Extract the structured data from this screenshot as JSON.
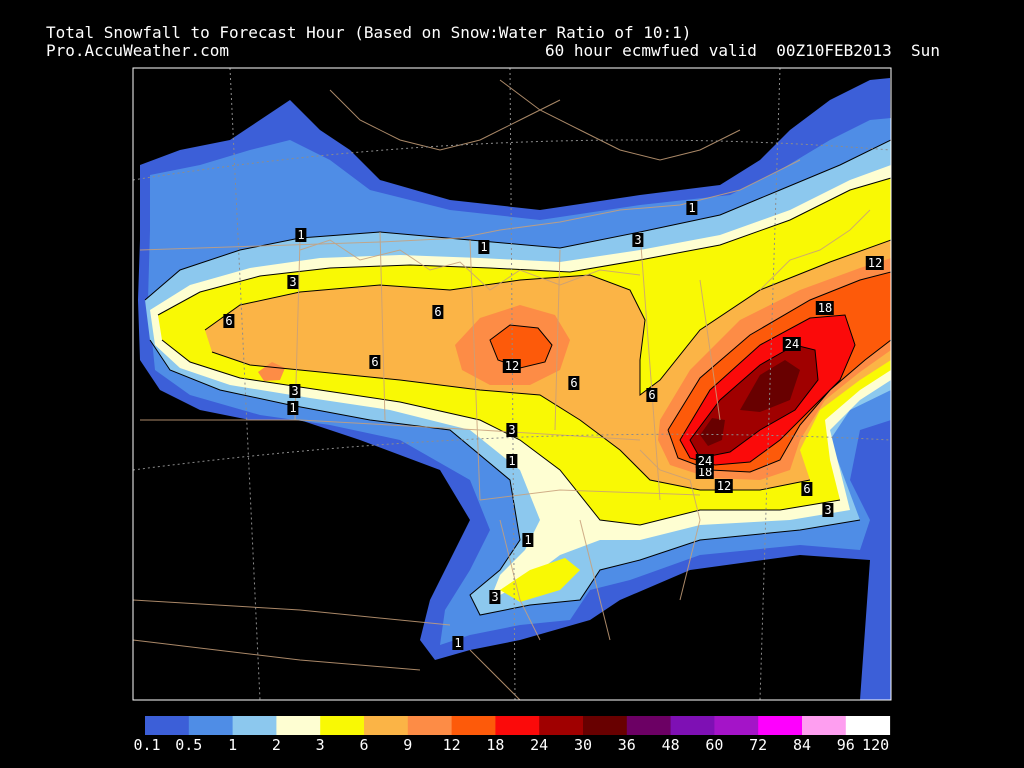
{
  "header": {
    "title": "Total Snowfall to Forecast Hour (Based on Snow:Water Ratio of 10:1)",
    "source": "Pro.AccuWeather.com",
    "valid": "60 hour ecmwfued valid  00Z10FEB2013  Sun"
  },
  "contour_labels": [
    "1",
    "1",
    "1",
    "1",
    "1",
    "1",
    "1",
    "3",
    "3",
    "3",
    "3",
    "3",
    "6",
    "6",
    "6",
    "6",
    "6",
    "6",
    "12",
    "12",
    "12",
    "18",
    "18",
    "24",
    "24",
    "3"
  ],
  "legend": {
    "ticks": [
      "0.1",
      "0.5",
      "1",
      "2",
      "3",
      "6",
      "9",
      "12",
      "18",
      "24",
      "30",
      "36",
      "48",
      "60",
      "72",
      "84",
      "96",
      "120"
    ],
    "colors": [
      "#3c5fd8",
      "#4f8de6",
      "#8cc8ee",
      "#fefed2",
      "#f9f904",
      "#fbb446",
      "#fd8c46",
      "#fd5a0a",
      "#fb0a0a",
      "#a00000",
      "#680000",
      "#6c0064",
      "#7e10b4",
      "#a414c8",
      "#fe00fe",
      "#fe9ef0",
      "#ffffff"
    ]
  }
}
